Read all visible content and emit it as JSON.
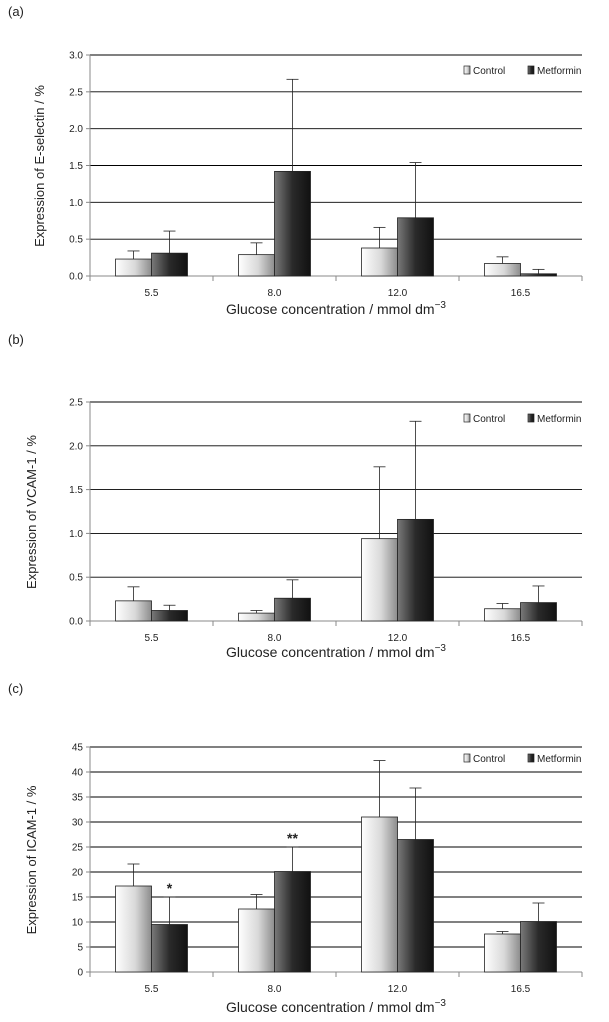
{
  "colors": {
    "control_light": "#ffffff",
    "control_dark": "#8c8c8c",
    "metformin_light": "#7a7a7a",
    "metformin_dark": "#111111",
    "grid": "#000000",
    "axis": "#888888"
  },
  "chart_data": [
    {
      "type": "bar",
      "panel_label": "(a)",
      "ylabel": "Expression of E-selectin / %",
      "xlabel": "Glucose concentration / mmol dm",
      "xlabel_sup": "−3",
      "categories": [
        "5.5",
        "8.0",
        "12.0",
        "16.5"
      ],
      "ylim": [
        0,
        3
      ],
      "yticks": [
        "0.0",
        "0.5",
        "1.0",
        "1.5",
        "2.0",
        "2.5",
        "3.0"
      ],
      "grid": true,
      "legend_position": "top-right",
      "series": [
        {
          "name": "Control",
          "values": [
            0.23,
            0.29,
            0.38,
            0.17
          ],
          "errors": [
            0.11,
            0.16,
            0.28,
            0.09
          ]
        },
        {
          "name": "Metformin",
          "values": [
            0.31,
            1.42,
            0.79,
            0.03
          ],
          "errors": [
            0.3,
            1.25,
            0.75,
            0.06
          ]
        }
      ],
      "annotations": []
    },
    {
      "type": "bar",
      "panel_label": "(b)",
      "ylabel": "Expression of VCAM-1 / %",
      "xlabel": "Glucose concentration / mmol dm",
      "xlabel_sup": "−3",
      "categories": [
        "5.5",
        "8.0",
        "12.0",
        "16.5"
      ],
      "ylim": [
        0,
        2.5
      ],
      "yticks": [
        "0.0",
        "0.5",
        "1.0",
        "1.5",
        "2.0",
        "2.5"
      ],
      "grid": true,
      "legend_position": "top-right",
      "series": [
        {
          "name": "Control",
          "values": [
            0.23,
            0.09,
            0.94,
            0.14
          ],
          "errors": [
            0.16,
            0.03,
            0.82,
            0.06
          ]
        },
        {
          "name": "Metformin",
          "values": [
            0.12,
            0.26,
            1.16,
            0.21
          ],
          "errors": [
            0.06,
            0.21,
            1.12,
            0.19
          ]
        }
      ],
      "annotations": []
    },
    {
      "type": "bar",
      "panel_label": "(c)",
      "ylabel": "Expression of ICAM-1 / %",
      "xlabel": "Glucose concentration / mmol dm",
      "xlabel_sup": "−3",
      "categories": [
        "5.5",
        "8.0",
        "12.0",
        "16.5"
      ],
      "ylim": [
        0,
        45
      ],
      "yticks": [
        "0",
        "5",
        "10",
        "15",
        "20",
        "25",
        "30",
        "35",
        "40",
        "45"
      ],
      "grid": true,
      "legend_position": "top-right",
      "series": [
        {
          "name": "Control",
          "values": [
            17.2,
            12.6,
            31.0,
            7.6
          ],
          "errors": [
            4.4,
            2.9,
            11.3,
            0.5
          ]
        },
        {
          "name": "Metformin",
          "values": [
            9.5,
            20.1,
            26.5,
            10.1
          ],
          "errors": [
            5.5,
            4.9,
            10.3,
            3.7
          ]
        }
      ],
      "annotations": [
        {
          "text": "*",
          "category": 0,
          "series": 1
        },
        {
          "text": "**",
          "category": 1,
          "series": 1
        }
      ]
    }
  ]
}
